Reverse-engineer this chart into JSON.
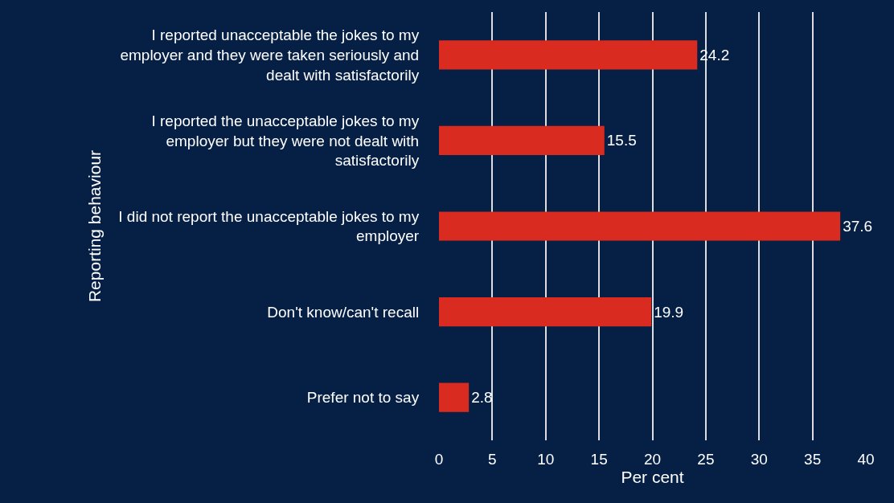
{
  "chart_data": {
    "type": "bar",
    "orientation": "horizontal",
    "xlabel": "Per cent",
    "ylabel": "Reporting behaviour",
    "categories": [
      "I reported unacceptable the jokes to my employer and they were taken seriously and dealt with satisfactorily",
      "I reported the unacceptable jokes to my employer but they were not dealt with satisfactorily",
      "I did not report the unacceptable jokes to my employer",
      "Don't know/can't recall",
      "Prefer not to say"
    ],
    "values": [
      24.2,
      15.5,
      37.6,
      19.9,
      2.8
    ],
    "color": "#d92b1f",
    "xlim": [
      0,
      40
    ],
    "xticks": [
      0,
      5,
      10,
      15,
      20,
      25,
      30,
      35,
      40
    ],
    "grid": "x",
    "data_labels": true,
    "legend": false
  }
}
